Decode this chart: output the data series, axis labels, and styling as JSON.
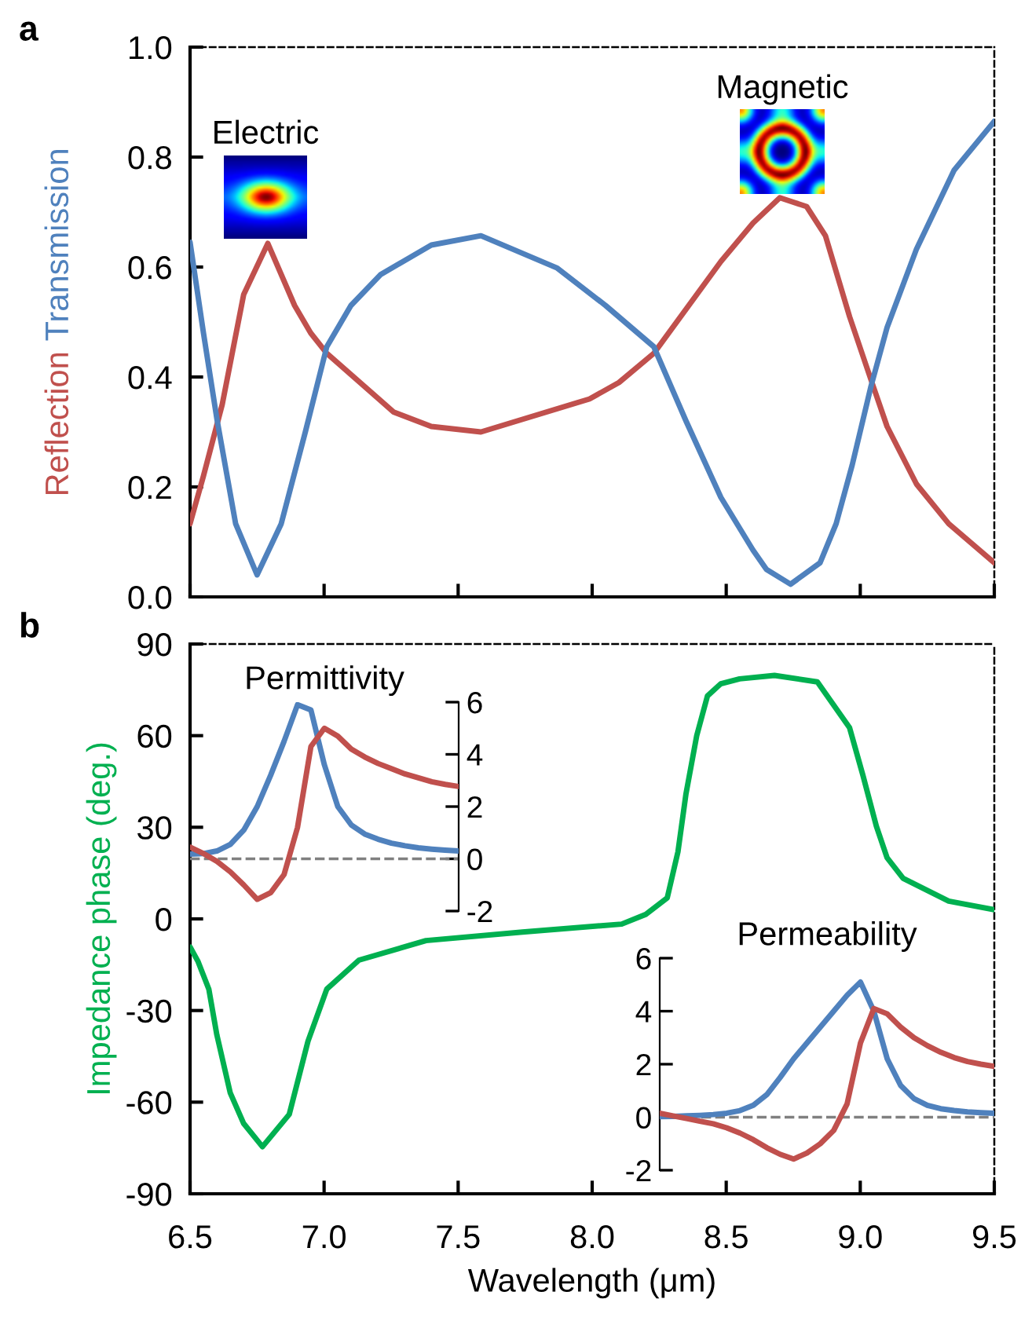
{
  "chart_data": [
    {
      "type": "line",
      "annotations": [
        "a",
        "Electric",
        "Magnetic"
      ],
      "xlim": [
        6.5,
        9.5
      ],
      "xticks": [
        {
          "value": 6.5,
          "label": null
        },
        {
          "value": 7.0,
          "label": null
        },
        {
          "value": 7.5,
          "label": null
        },
        {
          "value": 8.0,
          "label": null
        },
        {
          "value": 8.5,
          "label": null
        },
        {
          "value": 9.0,
          "label": null
        },
        {
          "value": 9.5,
          "label": null
        }
      ],
      "ylim": [
        0.0,
        1.0
      ],
      "yticks": [
        {
          "value": 0,
          "label": "0.0"
        },
        {
          "value": 0.2,
          "label": "0.2"
        },
        {
          "value": 0.4,
          "label": "0.4"
        },
        {
          "value": 0.6,
          "label": "0.6"
        },
        {
          "value": 0.8,
          "label": "0.8"
        },
        {
          "value": 1.0,
          "label": "1.0"
        }
      ],
      "tick_labels": "y",
      "series": [
        {
          "name": "Reflection",
          "color": "#c0504d",
          "x": [
            6.5,
            6.55,
            6.62,
            6.7,
            6.79,
            6.89,
            6.95,
            7.01,
            7.26,
            7.4,
            7.585,
            7.99,
            8.1,
            8.23,
            8.48,
            8.6,
            8.7,
            8.8,
            8.87,
            8.96,
            9.04,
            9.1,
            9.21,
            9.33,
            9.5
          ],
          "values": [
            0.133,
            0.22,
            0.35,
            0.55,
            0.643,
            0.53,
            0.48,
            0.443,
            0.336,
            0.31,
            0.3,
            0.36,
            0.39,
            0.443,
            0.61,
            0.68,
            0.726,
            0.71,
            0.657,
            0.51,
            0.395,
            0.31,
            0.205,
            0.133,
            0.062
          ]
        },
        {
          "name": "Transmission",
          "color": "#4f81bd",
          "x": [
            6.5,
            6.55,
            6.6,
            6.67,
            6.75,
            6.84,
            6.93,
            7.01,
            7.1,
            7.21,
            7.4,
            7.585,
            7.87,
            8.05,
            8.23,
            8.35,
            8.48,
            8.6,
            8.65,
            8.74,
            8.85,
            8.91,
            8.97,
            9.04,
            9.1,
            9.21,
            9.35,
            9.5
          ],
          "values": [
            0.645,
            0.48,
            0.324,
            0.133,
            0.04,
            0.133,
            0.3,
            0.455,
            0.53,
            0.586,
            0.64,
            0.657,
            0.598,
            0.53,
            0.455,
            0.32,
            0.181,
            0.085,
            0.05,
            0.023,
            0.062,
            0.133,
            0.24,
            0.383,
            0.49,
            0.633,
            0.776,
            0.865
          ]
        }
      ]
    },
    {
      "type": "line",
      "annotations": [
        "b"
      ],
      "xlabel": "Wavelength (μm)",
      "ylabel": "Impedance phase (deg.)",
      "xlim": [
        6.5,
        9.5
      ],
      "xticks": [
        {
          "value": 6.5,
          "label": "6.5"
        },
        {
          "value": 7.0,
          "label": "7.0"
        },
        {
          "value": 7.5,
          "label": "7.5"
        },
        {
          "value": 8.0,
          "label": "8.0"
        },
        {
          "value": 8.5,
          "label": "8.5"
        },
        {
          "value": 9.0,
          "label": "9.0"
        },
        {
          "value": 9.5,
          "label": "9.5"
        }
      ],
      "ylim": [
        -90,
        90
      ],
      "yticks": [
        -90,
        -60,
        -30,
        0,
        30,
        60,
        90
      ],
      "series": [
        {
          "color": "#00b050",
          "x": [
            6.5,
            6.53,
            6.57,
            6.6,
            6.65,
            6.7,
            6.77,
            6.87,
            6.94,
            7.01,
            7.13,
            7.38,
            7.74,
            8.11,
            8.2,
            8.28,
            8.32,
            8.35,
            8.39,
            8.43,
            8.48,
            8.55,
            8.68,
            8.84,
            8.96,
            9.01,
            9.06,
            9.1,
            9.16,
            9.33,
            9.5
          ],
          "values": [
            -9.2,
            -14,
            -23,
            -38,
            -57,
            -67,
            -74.6,
            -64,
            -40,
            -23,
            -13.5,
            -7.1,
            -4.3,
            -1.7,
            1.5,
            6.9,
            22,
            41,
            60,
            73,
            77,
            78.6,
            79.7,
            77.6,
            62.6,
            47,
            30.4,
            20,
            13.3,
            5.8,
            3
          ]
        }
      ]
    },
    {
      "type": "line",
      "title": "Permittivity",
      "categories": [
        null,
        null,
        null,
        null,
        null,
        null,
        null,
        null,
        null,
        null,
        null,
        null,
        null,
        null,
        null,
        null,
        null,
        null,
        null,
        null,
        null
      ],
      "ylim": [
        -2,
        6
      ],
      "yticks": [
        -2,
        0,
        2,
        4,
        6
      ],
      "ref_lines": [
        {
          "axis": "y",
          "value": 0,
          "color": "#808080",
          "line_style": "dashed"
        }
      ],
      "series": [
        {
          "color": "#4f81bd",
          "values": [
            0.18,
            0.2,
            0.3,
            0.55,
            1.1,
            2.0,
            3.2,
            4.5,
            5.9,
            5.7,
            3.6,
            2.0,
            1.3,
            0.95,
            0.75,
            0.6,
            0.5,
            0.42,
            0.37,
            0.33,
            0.3
          ]
        },
        {
          "color": "#c0504d",
          "values": [
            0.45,
            0.2,
            -0.1,
            -0.5,
            -1.0,
            -1.55,
            -1.3,
            -0.6,
            1.2,
            4.3,
            5.0,
            4.7,
            4.2,
            3.9,
            3.65,
            3.45,
            3.25,
            3.1,
            2.95,
            2.85,
            2.77
          ]
        }
      ]
    },
    {
      "type": "line",
      "title": "Permeability",
      "categories": [
        null,
        null,
        null,
        null,
        null,
        null,
        null,
        null,
        null,
        null,
        null,
        null,
        null,
        null,
        null,
        null,
        null,
        null,
        null,
        null,
        null,
        null,
        null,
        null,
        null,
        null
      ],
      "ylim": [
        -2,
        6
      ],
      "yticks": [
        -2,
        0,
        2,
        4,
        6
      ],
      "ref_lines": [
        {
          "axis": "y",
          "value": 0,
          "color": "#808080",
          "line_style": "dashed"
        }
      ],
      "series": [
        {
          "color": "#4f81bd",
          "values": [
            0.02,
            0.03,
            0.05,
            0.07,
            0.1,
            0.15,
            0.25,
            0.45,
            0.85,
            1.5,
            2.2,
            2.8,
            3.4,
            4.0,
            4.6,
            5.1,
            4.0,
            2.2,
            1.2,
            0.7,
            0.45,
            0.32,
            0.25,
            0.2,
            0.17,
            0.15
          ]
        },
        {
          "color": "#c0504d",
          "values": [
            0.15,
            0.05,
            -0.05,
            -0.15,
            -0.25,
            -0.4,
            -0.6,
            -0.85,
            -1.15,
            -1.4,
            -1.58,
            -1.35,
            -1.0,
            -0.5,
            0.5,
            2.8,
            4.1,
            3.9,
            3.4,
            3.0,
            2.7,
            2.45,
            2.25,
            2.1,
            2.0,
            1.92
          ]
        }
      ]
    }
  ]
}
